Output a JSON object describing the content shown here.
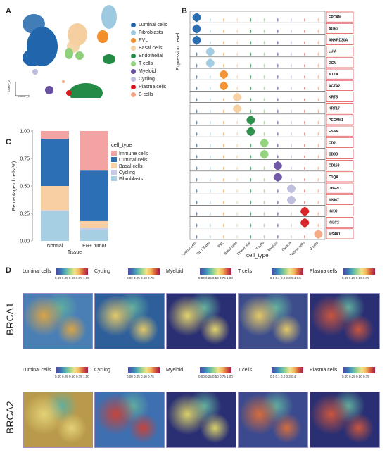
{
  "panels": {
    "a": "A",
    "b": "B",
    "c": "C",
    "d": "D"
  },
  "umap": {
    "xlabel": "UMAP_1",
    "ylabel": "UMAP_2",
    "legend": [
      {
        "label": "Luminal cells",
        "color": "#2166ac"
      },
      {
        "label": "Fibroblasts",
        "color": "#9ecae1"
      },
      {
        "label": "PVL",
        "color": "#f28e2b"
      },
      {
        "label": "Basal cells",
        "color": "#f5cfa0"
      },
      {
        "label": "Endothelial",
        "color": "#238b45"
      },
      {
        "label": "T cells",
        "color": "#8fd17a"
      },
      {
        "label": "Myeloid",
        "color": "#6a51a3"
      },
      {
        "label": "Cycling",
        "color": "#bcbddc"
      },
      {
        "label": "Plasma cells",
        "color": "#d7191c"
      },
      {
        "label": "B cells",
        "color": "#f4a582"
      }
    ]
  },
  "violin": {
    "ylabel": "Expression Level",
    "xlabel": "cell_type",
    "genes": [
      "EPCAM",
      "AGR2",
      "ANKRD30A",
      "LUM",
      "DCN",
      "MT1A",
      "ACTA2",
      "KRT5",
      "KRT17",
      "PECAM1",
      "ESAM",
      "CD2",
      "CD3D",
      "CD163",
      "C1QA",
      "UBE2C",
      "MKI67",
      "IGKC",
      "IGLC2",
      "MS4A1"
    ],
    "cell_types": [
      "Luminal cells",
      "Fibroblasts",
      "PVL",
      "Basal cells",
      "Endothelial",
      "T cells",
      "Myeloid",
      "Cycling",
      "Plasma cells",
      "B cells"
    ]
  },
  "chart_data": {
    "type": "bar",
    "stacked": true,
    "categories": [
      "Normal",
      "ER+ tumor"
    ],
    "series": [
      {
        "name": "Fibroblasts",
        "color": "#a6cfe3",
        "values": [
          0.27,
          0.1
        ]
      },
      {
        "name": "Cycling",
        "color": "#c7cbe6",
        "values": [
          0.01,
          0.02
        ]
      },
      {
        "name": "Basal cells",
        "color": "#f7cfa3",
        "values": [
          0.22,
          0.06
        ]
      },
      {
        "name": "Luminal cells",
        "color": "#2c6fb5",
        "values": [
          0.43,
          0.46
        ]
      },
      {
        "name": "Immune cells",
        "color": "#f4a3a3",
        "values": [
          0.07,
          0.36
        ]
      }
    ],
    "legend_order": [
      "Immune cells",
      "Luminal cells",
      "Basal cells",
      "Cycling",
      "Fibroblasts"
    ],
    "legend_title": "cell_type",
    "xlabel": "Tissue",
    "ylabel": "Percentage of cells(%)",
    "yticks": [
      "0.00",
      "0.25",
      "0.50",
      "0.75",
      "1.00"
    ],
    "ylim": [
      0,
      1
    ]
  },
  "spatial": {
    "rows": [
      "BRCA1",
      "BRCA2"
    ],
    "cols": [
      {
        "title": "Luminal cells",
        "ticks": "0.00 0.25 0.50 0.75 1.00"
      },
      {
        "title": "Cycling",
        "ticks": "0.00 0.25 0.50 0.75"
      },
      {
        "title": "Myeloid",
        "ticks": "0.00 0.25 0.50 0.75 1.00"
      },
      {
        "title": "T cells",
        "ticks_row1": "0.0 0.1 0.2 0.3 0.4 0.5",
        "ticks_row2": "0.0 0.1 0.2 0.3 0.4"
      },
      {
        "title": "Plasma cells",
        "ticks": "0.00 0.25 0.50 0.75"
      }
    ]
  }
}
